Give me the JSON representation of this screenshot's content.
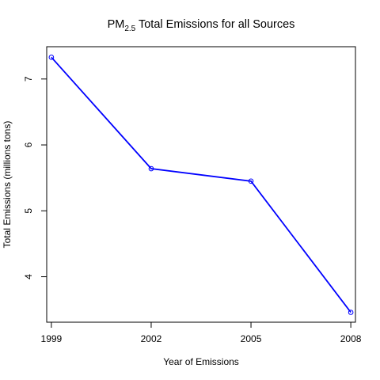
{
  "chart_data": {
    "type": "line",
    "title": {
      "prefix": "PM",
      "subscript": "2.5",
      "suffix": " Total Emissions for all Sources"
    },
    "xlabel": "Year of Emissions",
    "ylabel": "Total Emissions (millions tons)",
    "x": [
      1999,
      2002,
      2005,
      2008
    ],
    "x_tick_labels": [
      "1999",
      "2002",
      "2005",
      "2008"
    ],
    "y_ticks": [
      4,
      5,
      6,
      7
    ],
    "y_tick_labels": [
      "4",
      "5",
      "6",
      "7"
    ],
    "series": [
      {
        "values": [
          7.33,
          5.64,
          5.45,
          3.46
        ],
        "color": "#0000ff",
        "marker": "open-circle"
      }
    ],
    "xlim": [
      1998.86,
      2008.14
    ],
    "ylim": [
      3.31,
      7.49
    ],
    "grid": false,
    "legend": "none"
  }
}
